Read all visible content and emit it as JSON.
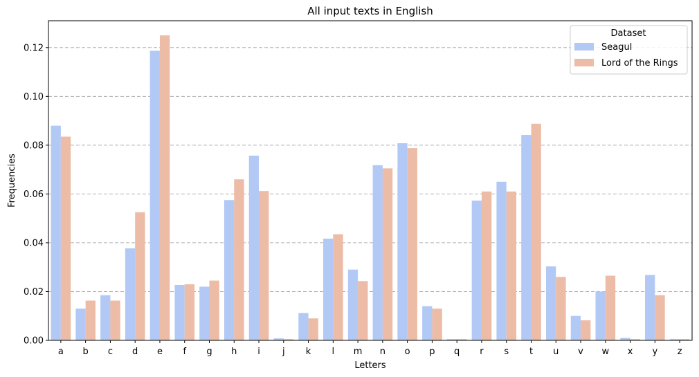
{
  "chart_data": {
    "type": "bar",
    "title": "All input texts in English",
    "xlabel": "Letters",
    "ylabel": "Frequencies",
    "ylim": [
      0,
      0.131
    ],
    "yticks": [
      "0.00",
      "0.02",
      "0.04",
      "0.06",
      "0.08",
      "0.10",
      "0.12"
    ],
    "grid": "y-dashed",
    "legend": {
      "title": "Dataset",
      "placement": "top-right"
    },
    "categories": [
      "a",
      "b",
      "c",
      "d",
      "e",
      "f",
      "g",
      "h",
      "i",
      "j",
      "k",
      "l",
      "m",
      "n",
      "o",
      "p",
      "q",
      "r",
      "s",
      "t",
      "u",
      "v",
      "w",
      "x",
      "y",
      "z"
    ],
    "series": [
      {
        "name": "Seagul",
        "color": "#b3c9f5",
        "values": [
          0.088,
          0.013,
          0.0185,
          0.0377,
          0.1187,
          0.0227,
          0.022,
          0.0575,
          0.0757,
          0.0008,
          0.0112,
          0.0417,
          0.029,
          0.0718,
          0.0808,
          0.014,
          0.0005,
          0.0573,
          0.065,
          0.0842,
          0.0303,
          0.01,
          0.02,
          0.001,
          0.0268,
          0.0005
        ]
      },
      {
        "name": "Lord of the Rings",
        "color": "#ecbca6",
        "values": [
          0.0835,
          0.0163,
          0.0163,
          0.0525,
          0.125,
          0.023,
          0.0245,
          0.066,
          0.0612,
          0.0005,
          0.009,
          0.0435,
          0.0243,
          0.0705,
          0.0788,
          0.013,
          0.0005,
          0.061,
          0.061,
          0.0888,
          0.026,
          0.0082,
          0.0265,
          0.0005,
          0.0185,
          0.0005
        ]
      }
    ]
  }
}
